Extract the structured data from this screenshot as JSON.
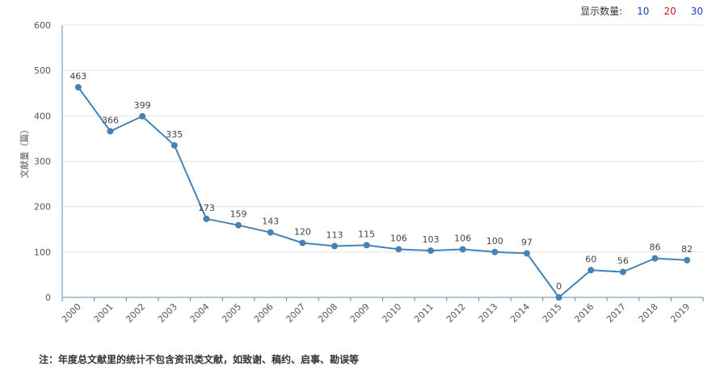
{
  "display_count": {
    "label": "显示数量:",
    "options": [
      {
        "value": "10",
        "color": "#1a3fcc"
      },
      {
        "value": "20",
        "color": "#d0131d"
      },
      {
        "value": "30",
        "color": "#1a3fcc"
      }
    ]
  },
  "note": "注：年度总文献里的统计不包含资讯类文献，如致谢、稿约、启事、勘误等",
  "chart_data": {
    "type": "line",
    "title": "",
    "xlabel": "",
    "ylabel": "文献量（篇）",
    "ylim": [
      0,
      600
    ],
    "yticks": [
      0,
      100,
      200,
      300,
      400,
      500,
      600
    ],
    "grid": true,
    "line_color": "#4682b4",
    "categories": [
      "2000",
      "2001",
      "2002",
      "2003",
      "2004",
      "2005",
      "2006",
      "2007",
      "2008",
      "2009",
      "2010",
      "2011",
      "2012",
      "2013",
      "2014",
      "2015",
      "2016",
      "2017",
      "2018",
      "2019"
    ],
    "values": [
      463,
      366,
      399,
      335,
      173,
      159,
      143,
      120,
      113,
      115,
      106,
      103,
      106,
      100,
      97,
      0,
      60,
      56,
      86,
      82
    ]
  }
}
